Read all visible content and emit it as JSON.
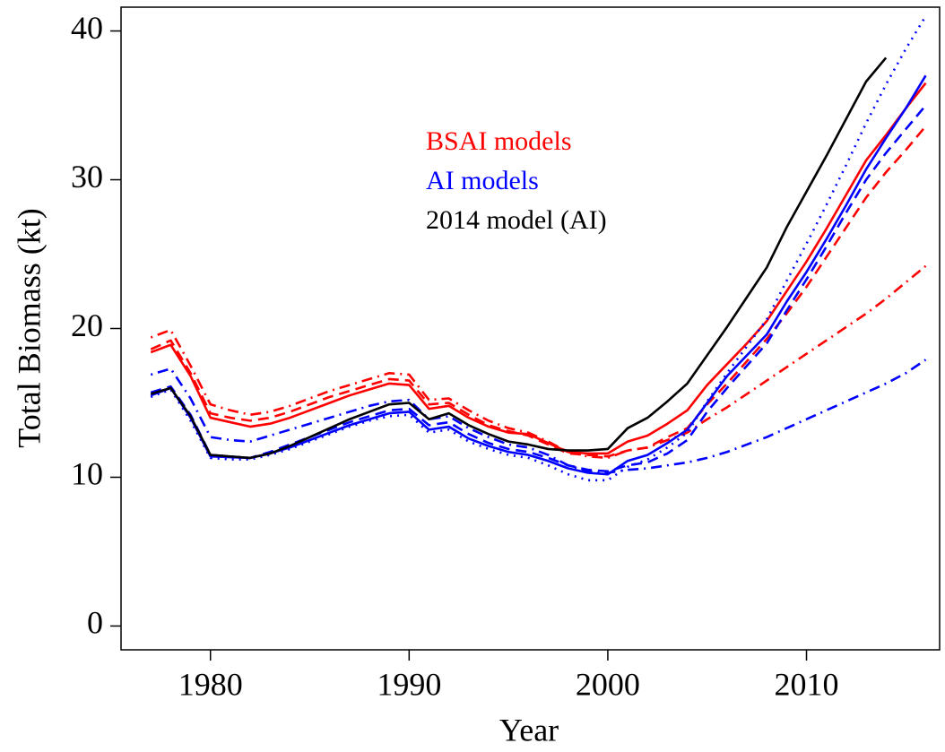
{
  "chart_data": {
    "type": "line",
    "xlabel": "Year",
    "ylabel": "Total Biomass (kt)",
    "x": [
      1977,
      1978,
      1979,
      1980,
      1981,
      1982,
      1983,
      1984,
      1985,
      1986,
      1987,
      1988,
      1989,
      1990,
      1991,
      1992,
      1993,
      1994,
      1995,
      1996,
      1997,
      1998,
      1999,
      2000,
      2001,
      2002,
      2003,
      2004,
      2005,
      2006,
      2007,
      2008,
      2009,
      2010,
      2011,
      2012,
      2013,
      2014,
      2015,
      2016
    ],
    "xlim": [
      1975.5,
      2016.7
    ],
    "xticks": [
      1980,
      1990,
      2000,
      2010
    ],
    "ylim": [
      -1.6,
      41.6
    ],
    "yticks": [
      0,
      10,
      20,
      30,
      40
    ],
    "annotations": [
      {
        "text": "BSAI models",
        "color": "#ff0000"
      },
      {
        "text": "AI models",
        "color": "#0000ff"
      },
      {
        "text": "2014 model (AI)",
        "color": "#000000"
      }
    ],
    "series": [
      {
        "color": "#ff0000",
        "dash": "dashdot",
        "values": [
          19.4,
          19.9,
          17.5,
          14.9,
          14.5,
          14.2,
          14.4,
          14.8,
          15.3,
          15.8,
          16.2,
          16.6,
          17.0,
          16.9,
          15.2,
          15.3,
          14.5,
          13.8,
          13.3,
          13.0,
          12.4,
          11.7,
          11.4,
          11.3,
          11.8,
          12.0,
          12.5,
          13.0,
          13.9,
          14.7,
          15.6,
          16.5,
          17.4,
          18.3,
          19.2,
          20.1,
          21.0,
          22.0,
          23.1,
          24.2
        ]
      },
      {
        "color": "#ff0000",
        "dash": "dashed",
        "values": [
          18.6,
          19.2,
          17.0,
          14.3,
          14.0,
          13.8,
          14.0,
          14.4,
          14.9,
          15.4,
          15.8,
          16.2,
          16.6,
          16.5,
          14.9,
          15.0,
          14.2,
          13.5,
          13.1,
          12.8,
          12.2,
          11.6,
          11.5,
          11.4,
          11.8,
          12.0,
          12.7,
          13.3,
          14.9,
          16.3,
          17.8,
          19.3,
          21.0,
          22.8,
          24.8,
          26.8,
          28.8,
          30.5,
          32.0,
          33.6
        ]
      },
      {
        "color": "#ff0000",
        "dash": "solid",
        "values": [
          18.4,
          18.9,
          16.8,
          14.0,
          13.7,
          13.4,
          13.6,
          14.0,
          14.5,
          15.0,
          15.5,
          15.9,
          16.3,
          16.2,
          14.6,
          14.8,
          14.0,
          13.4,
          13.0,
          12.9,
          12.3,
          11.7,
          11.6,
          11.6,
          12.4,
          12.8,
          13.6,
          14.5,
          16.2,
          17.6,
          19.0,
          20.5,
          22.5,
          24.5,
          26.7,
          29.0,
          31.3,
          33.0,
          34.8,
          36.5
        ]
      },
      {
        "color": "#0000ff",
        "dash": "dashdot",
        "values": [
          16.9,
          17.3,
          15.3,
          12.7,
          12.5,
          12.4,
          12.8,
          13.2,
          13.6,
          14.0,
          14.4,
          14.8,
          15.1,
          15.2,
          13.9,
          14.1,
          13.3,
          12.7,
          12.2,
          12.0,
          11.5,
          10.8,
          10.4,
          10.3,
          10.5,
          10.6,
          10.8,
          11.0,
          11.3,
          11.7,
          12.2,
          12.7,
          13.3,
          13.9,
          14.5,
          15.1,
          15.7,
          16.3,
          17.0,
          17.9
        ]
      },
      {
        "color": "#0000ff",
        "dash": "dashed",
        "values": [
          15.7,
          16.1,
          14.2,
          11.5,
          11.4,
          11.3,
          11.7,
          12.2,
          12.7,
          13.2,
          13.7,
          14.1,
          14.5,
          14.6,
          13.5,
          13.7,
          12.9,
          12.3,
          11.9,
          11.7,
          11.3,
          10.8,
          10.5,
          10.4,
          10.8,
          11.0,
          11.6,
          12.5,
          14.4,
          16.0,
          17.5,
          19.0,
          21.2,
          23.3,
          25.5,
          27.8,
          30.0,
          31.8,
          33.4,
          35.0
        ]
      },
      {
        "color": "#0000ff",
        "dash": "dotted",
        "values": [
          15.4,
          15.9,
          13.8,
          11.3,
          11.2,
          11.2,
          11.5,
          11.9,
          12.4,
          12.9,
          13.4,
          13.8,
          14.1,
          14.2,
          13.0,
          13.2,
          12.4,
          11.9,
          11.5,
          11.3,
          10.8,
          10.2,
          9.8,
          9.8,
          10.7,
          11.2,
          12.0,
          13.0,
          15.1,
          17.0,
          18.8,
          20.6,
          23.2,
          25.7,
          28.3,
          31.0,
          33.8,
          36.4,
          38.8,
          41.0
        ]
      },
      {
        "color": "#0000ff",
        "dash": "solid",
        "values": [
          15.5,
          16.0,
          14.0,
          11.4,
          11.35,
          11.3,
          11.6,
          12.0,
          12.5,
          13.0,
          13.5,
          13.9,
          14.3,
          14.4,
          13.2,
          13.4,
          12.6,
          12.1,
          11.7,
          11.5,
          11.1,
          10.6,
          10.3,
          10.2,
          11.1,
          11.5,
          12.3,
          13.2,
          15.0,
          16.8,
          18.2,
          19.6,
          21.8,
          23.8,
          26.0,
          28.3,
          30.7,
          32.8,
          34.8,
          37.0
        ]
      },
      {
        "color": "#000000",
        "dash": "solid",
        "values": [
          15.6,
          16.0,
          14.1,
          11.5,
          11.4,
          11.3,
          11.6,
          12.1,
          12.7,
          13.3,
          13.9,
          14.4,
          14.9,
          15.0,
          13.9,
          14.3,
          13.5,
          12.9,
          12.4,
          12.2,
          11.9,
          11.8,
          11.8,
          11.9,
          13.3,
          14.0,
          15.1,
          16.3,
          18.2,
          20.1,
          22.1,
          24.1,
          26.8,
          29.2,
          31.6,
          34.1,
          36.6,
          38.2,
          null,
          null
        ]
      }
    ]
  }
}
